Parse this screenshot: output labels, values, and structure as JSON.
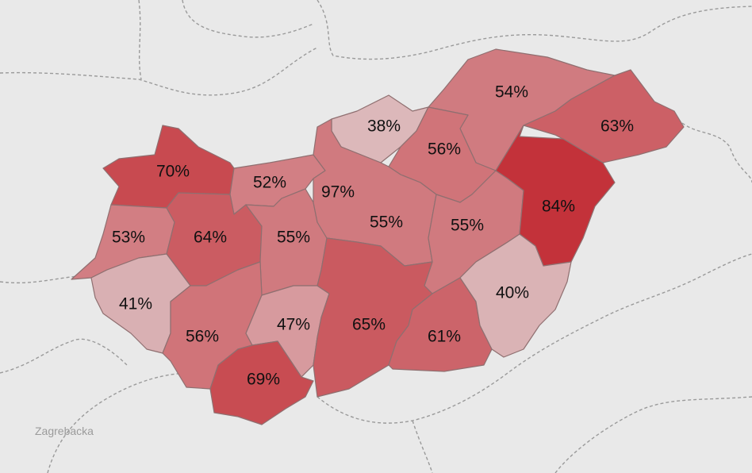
{
  "map": {
    "place_label": "Zagrebacka",
    "colors": {
      "background": "#e9e9e9",
      "border": "#9a9a9a",
      "max": "#c0262d"
    },
    "counties": [
      {
        "id": "gyor-moson-sopron",
        "value": 70,
        "label": "70%",
        "color": "#c84a50"
      },
      {
        "id": "komarom-esztergom",
        "value": 52,
        "label": "52%",
        "color": "#d27f84"
      },
      {
        "id": "budapest",
        "value": 97,
        "label": "97%",
        "color": "#c0262d"
      },
      {
        "id": "nograd",
        "value": 38,
        "label": "38%",
        "color": "#dcb8ba"
      },
      {
        "id": "borsod-abauj-zemplen",
        "value": 54,
        "label": "54%",
        "color": "#d07b80"
      },
      {
        "id": "szabolcs-szatmar-bereg",
        "value": 63,
        "label": "63%",
        "color": "#cc6066"
      },
      {
        "id": "heves",
        "value": 56,
        "label": "56%",
        "color": "#d07479"
      },
      {
        "id": "vas",
        "value": 53,
        "label": "53%",
        "color": "#d27e83"
      },
      {
        "id": "veszprem",
        "value": 64,
        "label": "64%",
        "color": "#cb5c62"
      },
      {
        "id": "fejer",
        "value": 55,
        "label": "55%",
        "color": "#d07a7f"
      },
      {
        "id": "pest",
        "value": 55,
        "label": "55%",
        "color": "#d07a7f"
      },
      {
        "id": "jasz-nagykun-szolnok",
        "value": 55,
        "label": "55%",
        "color": "#d07a7f"
      },
      {
        "id": "hajdu-bihar",
        "value": 84,
        "label": "84%",
        "color": "#c3323a"
      },
      {
        "id": "zala",
        "value": 41,
        "label": "41%",
        "color": "#d9b0b3"
      },
      {
        "id": "somogy",
        "value": 56,
        "label": "56%",
        "color": "#d07479"
      },
      {
        "id": "tolna",
        "value": 47,
        "label": "47%",
        "color": "#d79a9e"
      },
      {
        "id": "bacs-kiskun",
        "value": 65,
        "label": "65%",
        "color": "#ca5a60"
      },
      {
        "id": "csongrad",
        "value": 61,
        "label": "61%",
        "color": "#cc646a"
      },
      {
        "id": "bekes",
        "value": 40,
        "label": "40%",
        "color": "#dab3b5"
      },
      {
        "id": "baranya",
        "value": 69,
        "label": "69%",
        "color": "#c84c52"
      }
    ]
  }
}
